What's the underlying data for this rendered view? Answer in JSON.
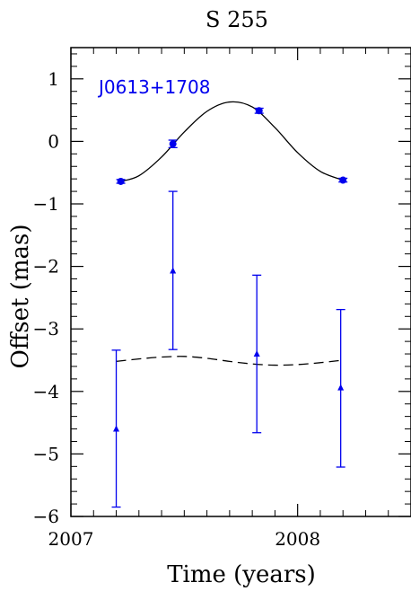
{
  "chart_data": {
    "type": "scatter",
    "title": "S 255",
    "xlabel": "Time (years)",
    "ylabel": "Offset (mas)",
    "xlim": [
      2007.0,
      2008.5
    ],
    "ylim": [
      -6,
      1.5
    ],
    "x_ticks": [
      2007,
      2008
    ],
    "x_tick_labels": [
      "2007",
      "2008"
    ],
    "y_ticks": [
      1,
      0,
      -1,
      -2,
      -3,
      -4,
      -5,
      -6
    ],
    "y_tick_labels": [
      "1",
      "0",
      "−1",
      "−2",
      "−3",
      "−4",
      "−5",
      "−6"
    ],
    "annotation": "J0613+1708",
    "colors": {
      "axes": "#000000",
      "data": "#0000ee",
      "model": "#000000"
    },
    "grid": false,
    "series": [
      {
        "marker": "circle",
        "points": [
          {
            "x": 2007.22,
            "y": -0.64,
            "yerr": 0.03
          },
          {
            "x": 2007.45,
            "y": -0.04,
            "yerr": 0.06
          },
          {
            "x": 2007.83,
            "y": 0.49,
            "yerr": 0.04
          },
          {
            "x": 2008.2,
            "y": -0.62,
            "yerr": 0.03
          }
        ],
        "model_curve": {
          "style": "solid",
          "x": [
            2007.22,
            2007.3,
            2007.4,
            2007.5,
            2007.6,
            2007.7,
            2007.8,
            2007.9,
            2008.0,
            2008.1,
            2008.2
          ],
          "y": [
            -0.64,
            -0.55,
            -0.25,
            0.15,
            0.48,
            0.63,
            0.55,
            0.22,
            -0.18,
            -0.48,
            -0.62
          ]
        }
      },
      {
        "marker": "triangle",
        "points": [
          {
            "x": 2007.2,
            "y": -4.6,
            "ylow": -5.85,
            "yhigh": -3.34
          },
          {
            "x": 2007.45,
            "y": -2.07,
            "ylow": -3.33,
            "yhigh": -0.8
          },
          {
            "x": 2007.82,
            "y": -3.4,
            "ylow": -4.66,
            "yhigh": -2.14
          },
          {
            "x": 2008.19,
            "y": -3.94,
            "ylow": -5.21,
            "yhigh": -2.69
          }
        ],
        "model_curve": {
          "style": "dashed",
          "x": [
            2007.2,
            2007.3,
            2007.4,
            2007.5,
            2007.6,
            2007.7,
            2007.8,
            2007.9,
            2008.0,
            2008.1,
            2008.2
          ],
          "y": [
            -3.52,
            -3.48,
            -3.45,
            -3.44,
            -3.47,
            -3.52,
            -3.56,
            -3.58,
            -3.57,
            -3.54,
            -3.5
          ]
        }
      }
    ]
  }
}
